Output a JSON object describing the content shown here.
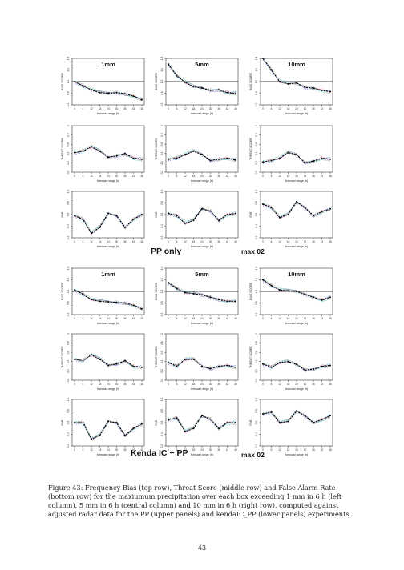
{
  "figure": {
    "panel_labels": [
      "1mm",
      "5mm",
      "10mm"
    ],
    "row_ylabels": [
      "BIAS SCORE",
      "THREAT SCORE",
      "FAR"
    ],
    "xlabel": "forecast range (h)",
    "x_ticks": [
      "0",
      "6",
      "12",
      "18",
      "24",
      "30",
      "36",
      "42",
      "48"
    ],
    "group_labels": [
      "PP only",
      "Kenda IC + PP"
    ],
    "group_suffix": "max 02",
    "y_ticks": {
      "bias": [
        "0.2",
        "0.6",
        "1.0",
        "1.4",
        "1.8"
      ],
      "threat": [
        "0.0",
        "0.2",
        "0.4",
        "0.6",
        "0.8",
        "1"
      ],
      "far": [
        "0.2",
        "0.4",
        "0.6",
        "0.8",
        "1.0"
      ]
    }
  },
  "chart_data": [
    {
      "type": "line",
      "group": "PP only",
      "row": "bias",
      "threshold": "1mm",
      "x": [
        0,
        6,
        12,
        18,
        24,
        30,
        36,
        42,
        48
      ],
      "values": [
        1.0,
        0.85,
        0.72,
        0.62,
        0.6,
        0.62,
        0.58,
        0.5,
        0.38
      ]
    },
    {
      "type": "line",
      "group": "PP only",
      "row": "bias",
      "threshold": "5mm",
      "x": [
        0,
        6,
        12,
        18,
        24,
        30,
        36,
        42,
        48
      ],
      "values": [
        1.6,
        1.2,
        0.98,
        0.82,
        0.78,
        0.7,
        0.72,
        0.62,
        0.6
      ]
    },
    {
      "type": "line",
      "group": "PP only",
      "row": "bias",
      "threshold": "10mm",
      "x": [
        0,
        6,
        12,
        18,
        24,
        30,
        36,
        42,
        48
      ],
      "values": [
        1.8,
        1.4,
        1.0,
        0.92,
        0.95,
        0.8,
        0.78,
        0.7,
        0.66
      ]
    },
    {
      "type": "line",
      "group": "PP only",
      "row": "threat",
      "threshold": "1mm",
      "x": [
        0,
        6,
        12,
        18,
        24,
        30,
        36,
        42,
        48
      ],
      "values": [
        0.42,
        0.45,
        0.55,
        0.45,
        0.32,
        0.35,
        0.4,
        0.3,
        0.28
      ]
    },
    {
      "type": "line",
      "group": "PP only",
      "row": "threat",
      "threshold": "5mm",
      "x": [
        0,
        6,
        12,
        18,
        24,
        30,
        36,
        42,
        48
      ],
      "values": [
        0.28,
        0.3,
        0.38,
        0.45,
        0.38,
        0.25,
        0.28,
        0.3,
        0.26
      ]
    },
    {
      "type": "line",
      "group": "PP only",
      "row": "threat",
      "threshold": "10mm",
      "x": [
        0,
        6,
        12,
        18,
        24,
        30,
        36,
        42,
        48
      ],
      "values": [
        0.22,
        0.25,
        0.3,
        0.42,
        0.38,
        0.2,
        0.24,
        0.3,
        0.28
      ]
    },
    {
      "type": "line",
      "group": "PP only",
      "row": "far",
      "threshold": "1mm",
      "x": [
        0,
        6,
        12,
        18,
        24,
        30,
        36,
        42,
        48
      ],
      "values": [
        0.58,
        0.52,
        0.28,
        0.38,
        0.62,
        0.58,
        0.38,
        0.52,
        0.6
      ]
    },
    {
      "type": "line",
      "group": "PP only",
      "row": "far",
      "threshold": "5mm",
      "x": [
        0,
        6,
        12,
        18,
        24,
        30,
        36,
        42,
        48
      ],
      "values": [
        0.62,
        0.58,
        0.45,
        0.5,
        0.7,
        0.66,
        0.5,
        0.6,
        0.62
      ]
    },
    {
      "type": "line",
      "group": "PP only",
      "row": "far",
      "threshold": "10mm",
      "x": [
        0,
        6,
        12,
        18,
        24,
        30,
        36,
        42,
        48
      ],
      "values": [
        0.78,
        0.72,
        0.55,
        0.6,
        0.82,
        0.72,
        0.58,
        0.65,
        0.7
      ]
    },
    {
      "type": "line",
      "group": "Kenda IC + PP",
      "row": "bias",
      "threshold": "1mm",
      "x": [
        0,
        6,
        12,
        18,
        24,
        30,
        36,
        42,
        48
      ],
      "values": [
        1.05,
        0.9,
        0.72,
        0.66,
        0.64,
        0.62,
        0.6,
        0.52,
        0.4
      ]
    },
    {
      "type": "line",
      "group": "Kenda IC + PP",
      "row": "bias",
      "threshold": "5mm",
      "x": [
        0,
        6,
        12,
        18,
        24,
        30,
        36,
        42,
        48
      ],
      "values": [
        1.3,
        1.1,
        0.96,
        0.92,
        0.88,
        0.8,
        0.72,
        0.66,
        0.66
      ]
    },
    {
      "type": "line",
      "group": "Kenda IC + PP",
      "row": "bias",
      "threshold": "10mm",
      "x": [
        0,
        6,
        12,
        18,
        24,
        30,
        36,
        42,
        48
      ],
      "values": [
        1.4,
        1.2,
        1.05,
        1.02,
        1.0,
        0.9,
        0.8,
        0.7,
        0.8
      ]
    },
    {
      "type": "line",
      "group": "Kenda IC + PP",
      "row": "threat",
      "threshold": "1mm",
      "x": [
        0,
        6,
        12,
        18,
        24,
        30,
        36,
        42,
        48
      ],
      "values": [
        0.45,
        0.42,
        0.55,
        0.45,
        0.32,
        0.35,
        0.42,
        0.3,
        0.28
      ]
    },
    {
      "type": "line",
      "group": "Kenda IC + PP",
      "row": "threat",
      "threshold": "5mm",
      "x": [
        0,
        6,
        12,
        18,
        24,
        30,
        36,
        42,
        48
      ],
      "values": [
        0.38,
        0.3,
        0.45,
        0.45,
        0.3,
        0.25,
        0.3,
        0.32,
        0.28
      ]
    },
    {
      "type": "line",
      "group": "Kenda IC + PP",
      "row": "threat",
      "threshold": "10mm",
      "x": [
        0,
        6,
        12,
        18,
        24,
        30,
        36,
        42,
        48
      ],
      "values": [
        0.35,
        0.28,
        0.38,
        0.4,
        0.34,
        0.22,
        0.24,
        0.3,
        0.32
      ]
    },
    {
      "type": "line",
      "group": "Kenda IC + PP",
      "row": "far",
      "threshold": "1mm",
      "x": [
        0,
        6,
        12,
        18,
        24,
        30,
        36,
        42,
        48
      ],
      "values": [
        0.6,
        0.6,
        0.32,
        0.38,
        0.62,
        0.6,
        0.38,
        0.5,
        0.58
      ]
    },
    {
      "type": "line",
      "group": "Kenda IC + PP",
      "row": "far",
      "threshold": "5mm",
      "x": [
        0,
        6,
        12,
        18,
        24,
        30,
        36,
        42,
        48
      ],
      "values": [
        0.65,
        0.68,
        0.45,
        0.5,
        0.72,
        0.66,
        0.5,
        0.6,
        0.6
      ]
    },
    {
      "type": "line",
      "group": "Kenda IC + PP",
      "row": "far",
      "threshold": "10mm",
      "x": [
        0,
        6,
        12,
        18,
        24,
        30,
        36,
        42,
        48
      ],
      "values": [
        0.75,
        0.78,
        0.6,
        0.62,
        0.8,
        0.72,
        0.6,
        0.65,
        0.72
      ]
    }
  ],
  "caption": "Figure 43: Frequency Bias (top row), Threat Score (middle row) and False Alarm Rate (bottom row) for the maxiumum precipitation over each box exceeding 1 mm in 6 h (left column), 5 mm in 6 h (central column) and 10 mm in 6 h (right row), computed against adjusted radar data for the PP (upper panels) and kendaIC_PP (lower panels) experiments.",
  "page_number": "43"
}
